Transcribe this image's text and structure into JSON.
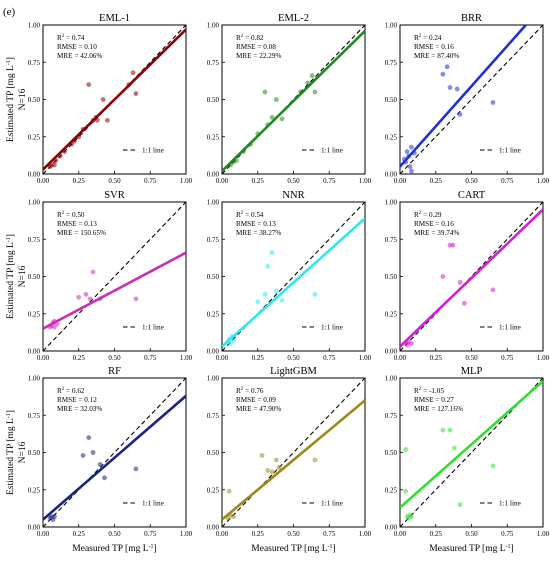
{
  "figure_label": "(e)",
  "xlabel_main": "Measured TP [mg L",
  "xlabel_sup": "-1",
  "xlabel_close": "]",
  "ylabel_main": "Estimated TP [mg L",
  "ylabel_sup": "-1",
  "ylabel_close": "]",
  "ylabel_secondary": "N=16",
  "legend_label": "1:1 line",
  "colors": {
    "EML-1": "#8b0000",
    "EML-2": "#1f8a1f",
    "BRR": "#1f2fd8",
    "SVR": "#c62fb8",
    "NNR": "#2ee8f0",
    "CART": "#d41ed4",
    "RF": "#1a237e",
    "LightGBM": "#9b8a1a",
    "MLP": "#2fe02f"
  },
  "chart_data": [
    {
      "type": "scatter",
      "title": "EML-1",
      "stats": {
        "r2_value": "0.74",
        "rmse_line": "RMSE = 0.10",
        "mre_line": "MRE = 42.06%"
      },
      "xlim": [
        0,
        1
      ],
      "ylim": [
        0,
        1
      ],
      "ticks": [
        "0.00",
        "0.25",
        "0.50",
        "0.75",
        "1.00"
      ],
      "fit": {
        "x": [
          0,
          1
        ],
        "y": [
          0.03,
          0.97
        ]
      },
      "points": [
        [
          0.05,
          0.05
        ],
        [
          0.06,
          0.06
        ],
        [
          0.08,
          0.06
        ],
        [
          0.09,
          0.09
        ],
        [
          0.12,
          0.12
        ],
        [
          0.15,
          0.15
        ],
        [
          0.2,
          0.2
        ],
        [
          0.22,
          0.22
        ],
        [
          0.25,
          0.25
        ],
        [
          0.28,
          0.3
        ],
        [
          0.32,
          0.6
        ],
        [
          0.35,
          0.36
        ],
        [
          0.37,
          0.38
        ],
        [
          0.38,
          0.36
        ],
        [
          0.42,
          0.5
        ],
        [
          0.45,
          0.36
        ],
        [
          0.6,
          0.6
        ],
        [
          0.63,
          0.68
        ],
        [
          0.65,
          0.54
        ]
      ]
    },
    {
      "type": "scatter",
      "title": "EML-2",
      "stats": {
        "r2_value": "0.82",
        "rmse_line": "RMSE = 0.08",
        "mre_line": "MRE = 22.29%"
      },
      "xlim": [
        0,
        1
      ],
      "ylim": [
        0,
        1
      ],
      "ticks": [
        "0.00",
        "0.25",
        "0.50",
        "0.75",
        "1.00"
      ],
      "fit": {
        "x": [
          0,
          1
        ],
        "y": [
          0.02,
          0.96
        ]
      },
      "points": [
        [
          0.06,
          0.06
        ],
        [
          0.08,
          0.08
        ],
        [
          0.1,
          0.09
        ],
        [
          0.15,
          0.15
        ],
        [
          0.2,
          0.2
        ],
        [
          0.25,
          0.27
        ],
        [
          0.3,
          0.55
        ],
        [
          0.32,
          0.33
        ],
        [
          0.35,
          0.38
        ],
        [
          0.38,
          0.5
        ],
        [
          0.42,
          0.37
        ],
        [
          0.55,
          0.55
        ],
        [
          0.6,
          0.61
        ],
        [
          0.63,
          0.66
        ],
        [
          0.65,
          0.55
        ]
      ]
    },
    {
      "type": "scatter",
      "title": "BRR",
      "stats": {
        "r2_value": "0.24",
        "rmse_line": "RMSE = 0.16",
        "mre_line": "MRE = 87.40%"
      },
      "xlim": [
        0,
        1
      ],
      "ylim": [
        0,
        1
      ],
      "ticks": [
        "0.00",
        "0.25",
        "0.50",
        "0.75",
        "1.00"
      ],
      "fit": {
        "x": [
          0,
          0.88
        ],
        "y": [
          0.05,
          1.0
        ]
      },
      "points": [
        [
          0.03,
          0.1
        ],
        [
          0.04,
          0.08
        ],
        [
          0.05,
          0.15
        ],
        [
          0.06,
          0.12
        ],
        [
          0.07,
          0.05
        ],
        [
          0.08,
          0.02
        ],
        [
          0.08,
          0.18
        ],
        [
          0.1,
          0.14
        ],
        [
          0.3,
          0.67
        ],
        [
          0.33,
          0.72
        ],
        [
          0.35,
          0.58
        ],
        [
          0.4,
          0.57
        ],
        [
          0.42,
          0.4
        ],
        [
          0.65,
          0.48
        ]
      ]
    },
    {
      "type": "scatter",
      "title": "SVR",
      "stats": {
        "r2_value": "0.50",
        "rmse_line": "RMSE = 0.13",
        "mre_line": "MRE = 150.65%"
      },
      "xlim": [
        0,
        1
      ],
      "ylim": [
        0,
        1
      ],
      "ticks": [
        "0.00",
        "0.25",
        "0.50",
        "0.75",
        "1.00"
      ],
      "fit": {
        "x": [
          0,
          1
        ],
        "y": [
          0.15,
          0.66
        ]
      },
      "points": [
        [
          0.05,
          0.16
        ],
        [
          0.06,
          0.17
        ],
        [
          0.07,
          0.19
        ],
        [
          0.08,
          0.16
        ],
        [
          0.08,
          0.2
        ],
        [
          0.1,
          0.18
        ],
        [
          0.25,
          0.36
        ],
        [
          0.3,
          0.38
        ],
        [
          0.33,
          0.35
        ],
        [
          0.35,
          0.53
        ],
        [
          0.4,
          0.35
        ],
        [
          0.65,
          0.35
        ]
      ]
    },
    {
      "type": "scatter",
      "title": "NNR",
      "stats": {
        "r2_value": "0.54",
        "rmse_line": "RMSE = 0.13",
        "mre_line": "MRE = 38.27%"
      },
      "xlim": [
        0,
        1
      ],
      "ylim": [
        0,
        1
      ],
      "ticks": [
        "0.00",
        "0.25",
        "0.50",
        "0.75",
        "1.00"
      ],
      "fit": {
        "x": [
          0,
          1
        ],
        "y": [
          0.03,
          0.89
        ]
      },
      "points": [
        [
          0.04,
          0.06
        ],
        [
          0.05,
          0.08
        ],
        [
          0.06,
          0.05
        ],
        [
          0.07,
          0.1
        ],
        [
          0.08,
          0.07
        ],
        [
          0.25,
          0.33
        ],
        [
          0.3,
          0.38
        ],
        [
          0.32,
          0.57
        ],
        [
          0.35,
          0.66
        ],
        [
          0.38,
          0.4
        ],
        [
          0.42,
          0.34
        ],
        [
          0.65,
          0.38
        ]
      ]
    },
    {
      "type": "scatter",
      "title": "CART",
      "stats": {
        "r2_value": "0.29",
        "rmse_line": "RMSE = 0.16",
        "mre_line": "MRE = 39.74%"
      },
      "xlim": [
        0,
        1
      ],
      "ylim": [
        0,
        1
      ],
      "ticks": [
        "0.00",
        "0.25",
        "0.50",
        "0.75",
        "1.00"
      ],
      "fit": {
        "x": [
          0,
          1
        ],
        "y": [
          0.03,
          0.95
        ]
      },
      "points": [
        [
          0.04,
          0.05
        ],
        [
          0.05,
          0.04
        ],
        [
          0.06,
          0.06
        ],
        [
          0.08,
          0.05
        ],
        [
          0.3,
          0.5
        ],
        [
          0.35,
          0.71
        ],
        [
          0.37,
          0.71
        ],
        [
          0.42,
          0.46
        ],
        [
          0.45,
          0.32
        ],
        [
          0.65,
          0.41
        ]
      ]
    },
    {
      "type": "scatter",
      "title": "RF",
      "stats": {
        "r2_value": "0.62",
        "rmse_line": "RMSE = 0.12",
        "mre_line": "MRE = 32.03%"
      },
      "xlim": [
        0,
        1
      ],
      "ylim": [
        0,
        1
      ],
      "ticks": [
        "0.00",
        "0.25",
        "0.50",
        "0.75",
        "1.00"
      ],
      "fit": {
        "x": [
          0,
          1
        ],
        "y": [
          0.05,
          0.88
        ]
      },
      "points": [
        [
          0.05,
          0.06
        ],
        [
          0.06,
          0.07
        ],
        [
          0.07,
          0.05
        ],
        [
          0.08,
          0.07
        ],
        [
          0.28,
          0.48
        ],
        [
          0.32,
          0.6
        ],
        [
          0.35,
          0.5
        ],
        [
          0.4,
          0.42
        ],
        [
          0.43,
          0.33
        ],
        [
          0.65,
          0.39
        ]
      ]
    },
    {
      "type": "scatter",
      "title": "LightGBM",
      "stats": {
        "r2_value": "0.76",
        "rmse_line": "RMSE = 0.09",
        "mre_line": "MRE = 47.90%"
      },
      "xlim": [
        0,
        1
      ],
      "ylim": [
        0,
        1
      ],
      "ticks": [
        "0.00",
        "0.25",
        "0.50",
        "0.75",
        "1.00"
      ],
      "fit": {
        "x": [
          0,
          1
        ],
        "y": [
          0.05,
          0.85
        ]
      },
      "points": [
        [
          0.04,
          0.06
        ],
        [
          0.05,
          0.24
        ],
        [
          0.06,
          0.08
        ],
        [
          0.08,
          0.07
        ],
        [
          0.28,
          0.48
        ],
        [
          0.32,
          0.38
        ],
        [
          0.35,
          0.37
        ],
        [
          0.38,
          0.45
        ],
        [
          0.4,
          0.4
        ],
        [
          0.65,
          0.45
        ]
      ]
    },
    {
      "type": "scatter",
      "title": "MLP",
      "stats": {
        "r2_value": "-1.05",
        "rmse_line": "RMSE = 0.27",
        "mre_line": "MRE = 127.16%"
      },
      "xlim": [
        0,
        1
      ],
      "ylim": [
        0,
        1
      ],
      "ticks": [
        "0.00",
        "0.25",
        "0.50",
        "0.75",
        "1.00"
      ],
      "fit": {
        "x": [
          0,
          1
        ],
        "y": [
          0.13,
          0.98
        ]
      },
      "points": [
        [
          0.04,
          0.24
        ],
        [
          0.04,
          0.52
        ],
        [
          0.05,
          0.07
        ],
        [
          0.06,
          0.06
        ],
        [
          0.07,
          0.08
        ],
        [
          0.08,
          0.07
        ],
        [
          0.3,
          0.65
        ],
        [
          0.35,
          0.65
        ],
        [
          0.38,
          0.53
        ],
        [
          0.42,
          0.15
        ],
        [
          0.65,
          0.41
        ]
      ]
    }
  ]
}
